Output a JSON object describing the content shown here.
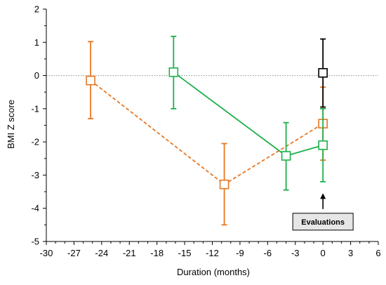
{
  "chart_data": {
    "type": "line",
    "title": "",
    "xlabel": "Duration (months)",
    "ylabel": "BMI Z score",
    "xlim": [
      -30,
      6
    ],
    "ylim": [
      -5,
      2
    ],
    "x_ticks": [
      -30,
      -27,
      -24,
      -21,
      -18,
      -15,
      -12,
      -9,
      -6,
      -3,
      0,
      3,
      6
    ],
    "y_ticks": [
      2,
      1,
      0,
      -1,
      -2,
      -3,
      -4,
      -5
    ],
    "reference_line": {
      "y": 0,
      "style": "dotted",
      "color": "#999999"
    },
    "series": [
      {
        "color": "#E87722",
        "line_style": "dashed",
        "marker": "square",
        "points": [
          {
            "x": -25.2,
            "y": -0.15,
            "err_low": -1.3,
            "err_high": 1.02
          },
          {
            "x": -10.7,
            "y": -3.28,
            "err_low": -4.5,
            "err_high": -2.05
          },
          {
            "x": 0.0,
            "y": -1.45,
            "err_low": -2.55,
            "err_high": -0.35
          }
        ]
      },
      {
        "color": "#1DB04B",
        "line_style": "solid",
        "marker": "square",
        "points": [
          {
            "x": -16.2,
            "y": 0.1,
            "err_low": -1.0,
            "err_high": 1.18
          },
          {
            "x": -4.0,
            "y": -2.42,
            "err_low": -3.45,
            "err_high": -1.42
          },
          {
            "x": 0.0,
            "y": -2.1,
            "err_low": -3.2,
            "err_high": -1.0
          }
        ]
      },
      {
        "color": "#000000",
        "line_style": "none",
        "marker": "square",
        "points": [
          {
            "x": 0.0,
            "y": 0.08,
            "err_low": -0.95,
            "err_high": 1.1
          }
        ]
      }
    ],
    "annotation": {
      "text": "Evaluations",
      "x": 0,
      "y_arrow_tip": -3.55,
      "y_box_top": -4.15
    },
    "grid": false
  }
}
